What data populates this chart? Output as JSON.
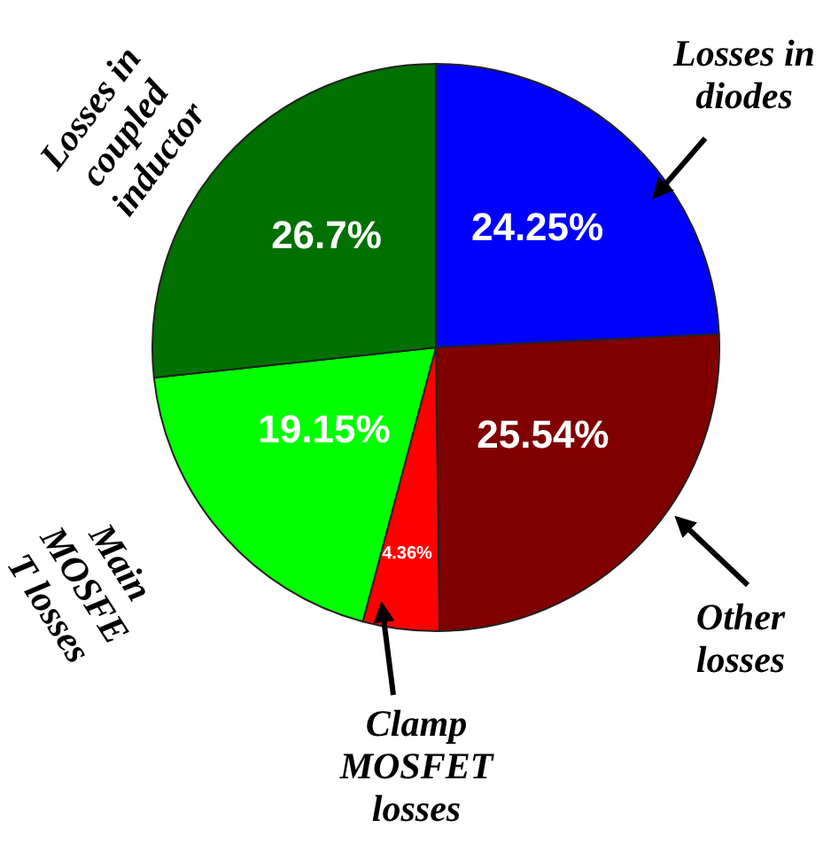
{
  "chart_data": {
    "type": "pie",
    "categories": [
      "Losses in\ndiodes",
      "Other\nlosses",
      "Clamp\nMOSFET\nlosses",
      "Main\nMOSFE\nT losses",
      "Losses in\ncoupled\ninductor"
    ],
    "values": [
      24.25,
      25.54,
      4.36,
      19.15,
      26.7
    ],
    "colors": [
      "#0000ff",
      "#800000",
      "#ff0000",
      "#00ff00",
      "#007000"
    ],
    "value_labels": [
      "24.25%",
      "25.54%",
      "4.36%",
      "19.15%",
      "26.7%"
    ]
  }
}
